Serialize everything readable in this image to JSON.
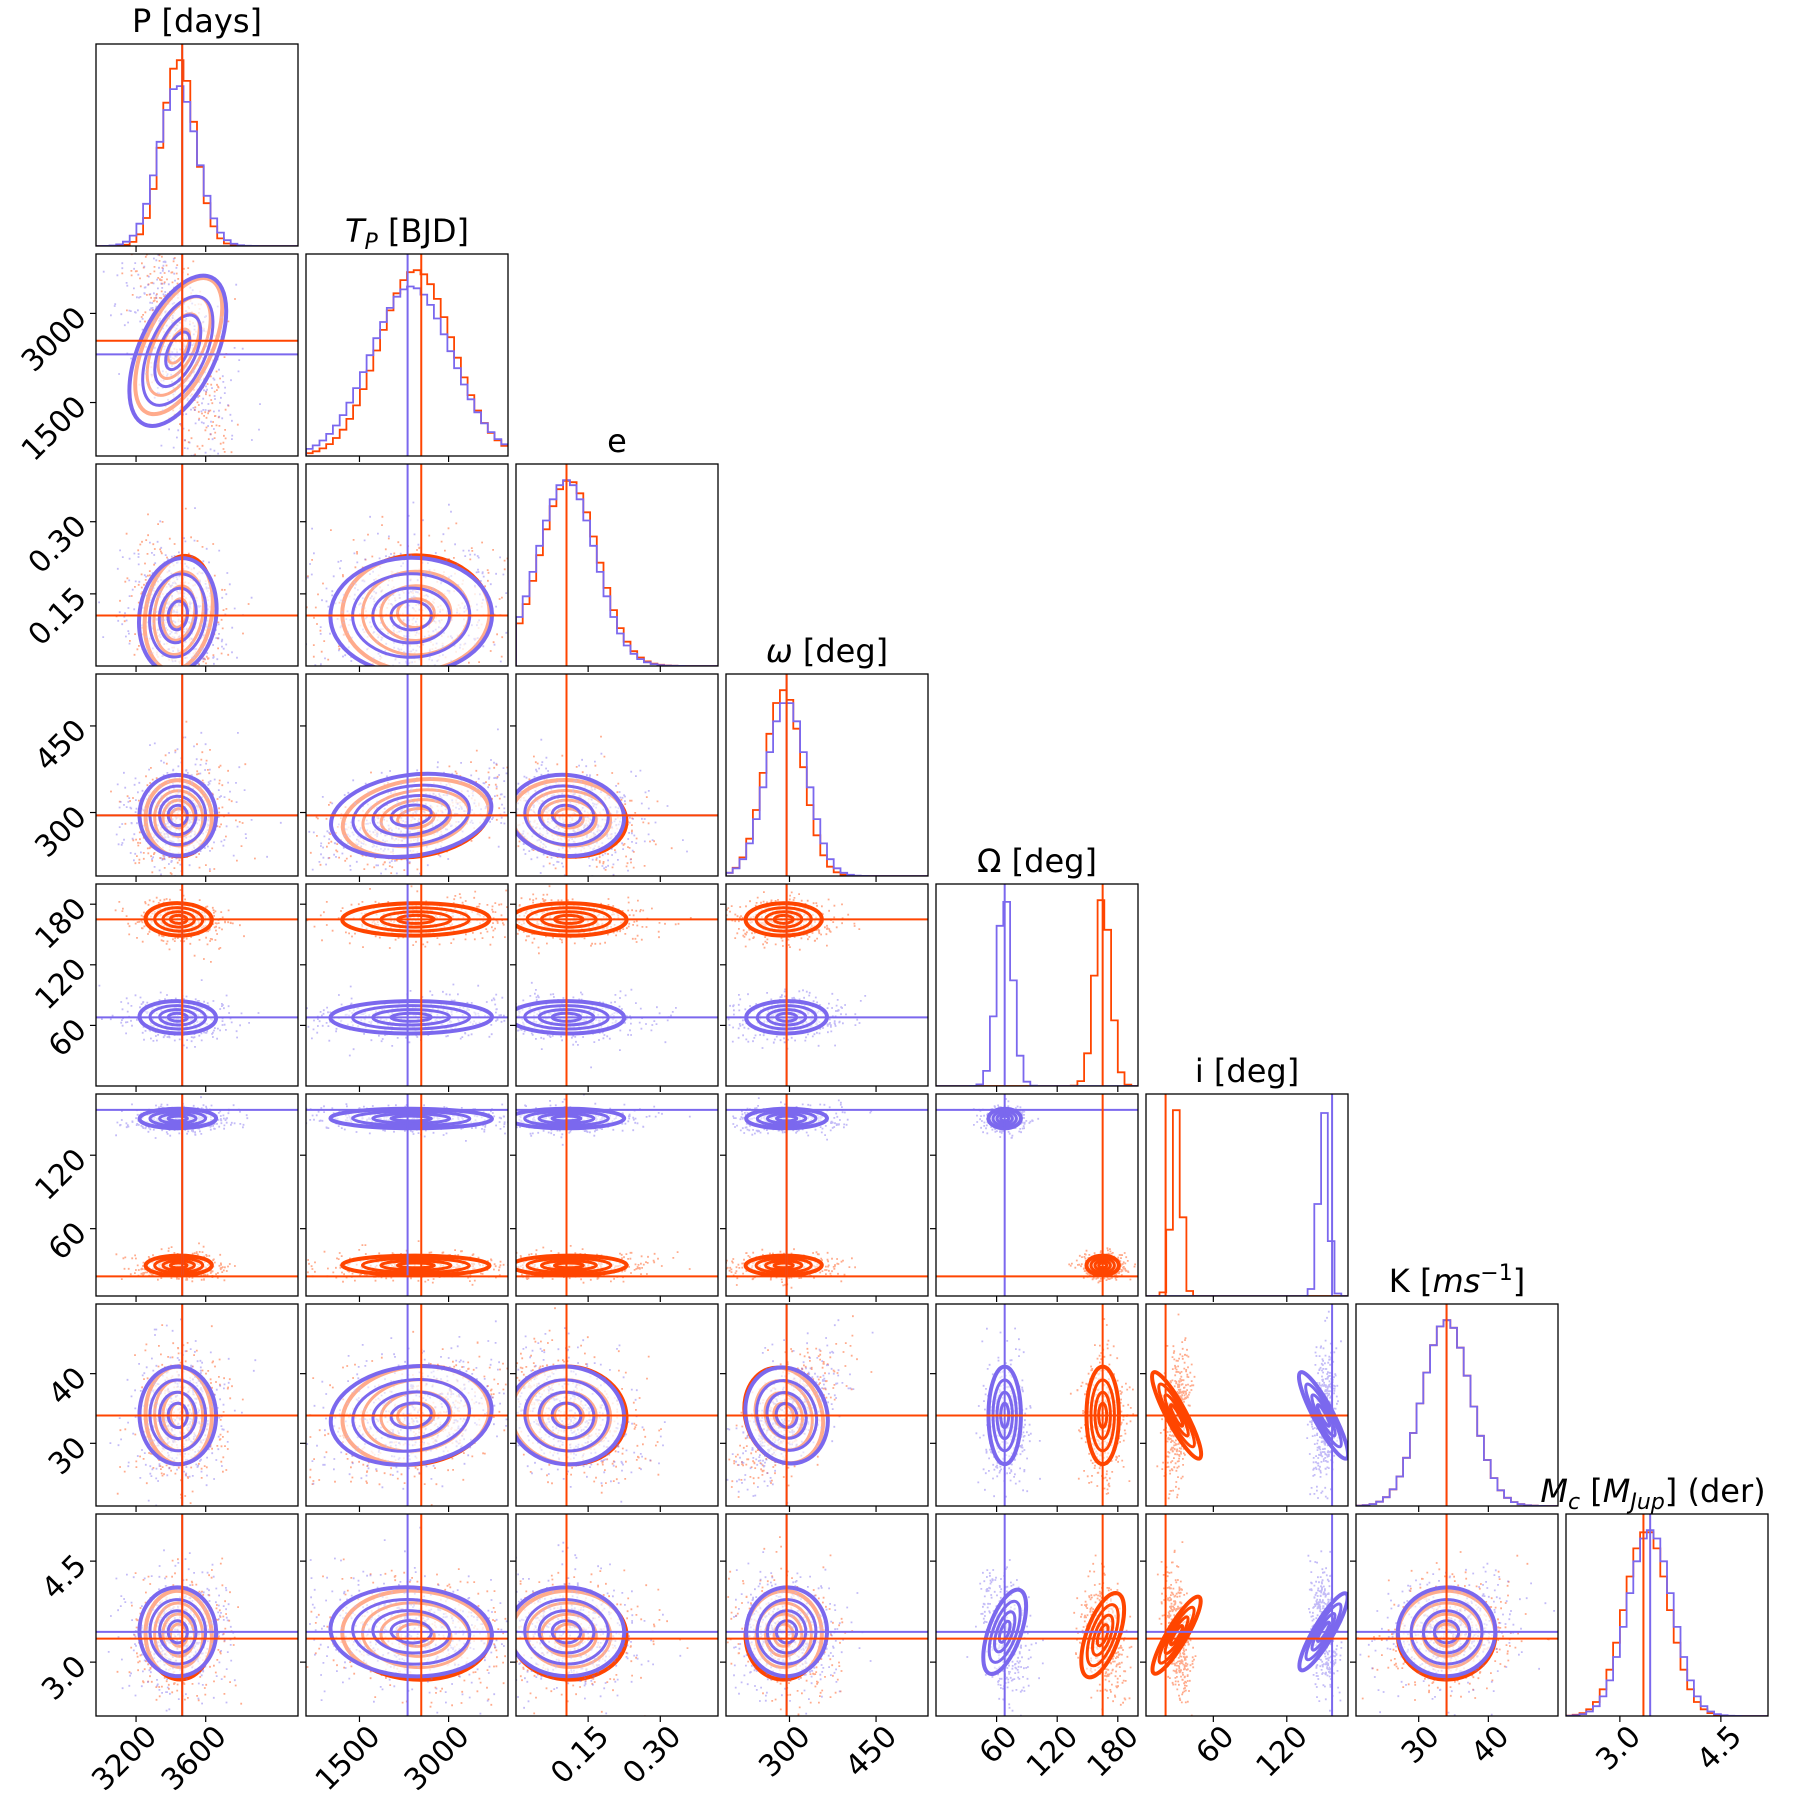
{
  "chart_data": {
    "type": "corner",
    "parameters": [
      {
        "id": "P",
        "title": "P [days]",
        "truth": [
          3465,
          3465
        ],
        "range": [
          2970,
          4130
        ],
        "ticks": [
          "3200",
          "3600"
        ],
        "tick_values": [
          3200,
          3600
        ]
      },
      {
        "id": "TP",
        "title": "T_P [BJD]",
        "truth": [
          2310,
          2540
        ],
        "range": [
          600,
          4000
        ],
        "ticks": [
          "1500",
          "3000"
        ],
        "tick_values": [
          1500,
          3000
        ]
      },
      {
        "id": "e",
        "title": "e",
        "truth": [
          0.105,
          0.105
        ],
        "range": [
          0.0,
          0.42
        ],
        "ticks": [
          "0.15",
          "0.30"
        ],
        "tick_values": [
          0.15,
          0.3
        ]
      },
      {
        "id": "omega",
        "title": "ω [deg]",
        "truth": [
          295,
          295
        ],
        "range": [
          190,
          540
        ],
        "ticks": [
          "300",
          "450"
        ],
        "tick_values": [
          300,
          450
        ]
      },
      {
        "id": "Omega",
        "title": "Ω [deg]",
        "truth": [
          68,
          165
        ],
        "range": [
          0,
          200
        ],
        "ticks": [
          "60",
          "120",
          "180"
        ],
        "tick_values": [
          60,
          120,
          180
        ]
      },
      {
        "id": "i",
        "title": "i [deg]",
        "truth": [
          157,
          21
        ],
        "range": [
          5,
          170
        ],
        "ticks": [
          "60",
          "120"
        ],
        "tick_values": [
          60,
          120
        ]
      },
      {
        "id": "K",
        "title": "K [ms^-1]",
        "truth": [
          34,
          34
        ],
        "range": [
          21,
          50
        ],
        "ticks": [
          "30",
          "40"
        ],
        "tick_values": [
          30,
          40
        ]
      },
      {
        "id": "Mc",
        "title": "M_c [M_Jup] (der)",
        "truth": [
          3.45,
          3.35
        ],
        "range": [
          2.2,
          5.2
        ],
        "ticks": [
          "3.0",
          "4.5"
        ],
        "tick_values": [
          3.0,
          4.5
        ]
      }
    ],
    "series": [
      {
        "color": "#7b68ee",
        "means": [
          3440,
          2370,
          0.105,
          295,
          68,
          150,
          34,
          3.45
        ],
        "sigmas": [
          110,
          680,
          0.06,
          35,
          8,
          4,
          3.5,
          0.33
        ]
      },
      {
        "color": "#ff4500",
        "means": [
          3445,
          2450,
          0.11,
          290,
          165,
          30,
          34,
          3.4
        ],
        "sigmas": [
          95,
          620,
          0.06,
          33,
          8,
          4,
          3.5,
          0.33
        ]
      }
    ]
  }
}
